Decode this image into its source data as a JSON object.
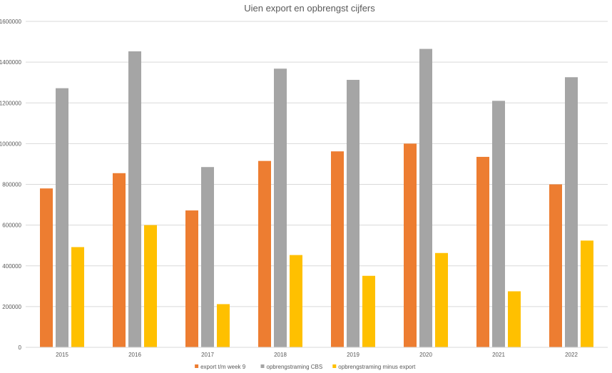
{
  "chart_data": {
    "type": "bar",
    "title": "Uien export en opbrengst cijfers",
    "xlabel": "",
    "ylabel": "",
    "categories": [
      "2015",
      "2016",
      "2017",
      "2018",
      "2019",
      "2020",
      "2021",
      "2022"
    ],
    "series": [
      {
        "name": "export t/m week 9",
        "color": "#ED7D31",
        "values": [
          780000,
          855000,
          672000,
          915000,
          962000,
          1000000,
          935000,
          800000
        ]
      },
      {
        "name": "opbrengstraming CBS",
        "color": "#A5A5A5",
        "values": [
          1272000,
          1453000,
          885000,
          1368000,
          1313000,
          1465000,
          1210000,
          1326000
        ]
      },
      {
        "name": "opbrengstraming minus export",
        "color": "#FFC000",
        "values": [
          492000,
          600000,
          212000,
          453000,
          351000,
          463000,
          275000,
          524000
        ]
      }
    ],
    "ylim": [
      0,
      1600000
    ],
    "yticks": [
      0,
      200000,
      400000,
      600000,
      800000,
      1000000,
      1200000,
      1400000,
      1600000
    ],
    "grid": true,
    "legend": "bottom"
  }
}
